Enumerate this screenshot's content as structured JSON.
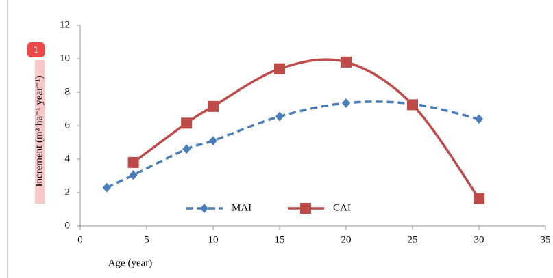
{
  "chart_data": {
    "type": "line",
    "y_label": "Increment (m³ ha⁻¹ year⁻¹)",
    "x_label": "Age (year)",
    "badge": "1",
    "xlim": [
      0,
      35
    ],
    "xticks": [
      0,
      5,
      10,
      15,
      20,
      25,
      30,
      35
    ],
    "ylim": [
      0,
      12
    ],
    "yticks": [
      0,
      2,
      4,
      6,
      8,
      10,
      12
    ],
    "legend": "bottom",
    "series": [
      {
        "name": "MAI",
        "color": "#4a7ebb",
        "marker": "diamond",
        "line_style": "dashed",
        "x": [
          2,
          4,
          8,
          10,
          15,
          20,
          25,
          30
        ],
        "values": [
          2.3,
          3.05,
          4.6,
          5.1,
          6.55,
          7.35,
          7.3,
          6.4
        ]
      },
      {
        "name": "CAI",
        "color": "#be4b48",
        "marker": "square",
        "line_style": "solid",
        "x": [
          4,
          8,
          10,
          15,
          20,
          25,
          30
        ],
        "values": [
          3.8,
          6.15,
          7.15,
          9.4,
          9.8,
          7.25,
          1.65
        ]
      }
    ]
  }
}
